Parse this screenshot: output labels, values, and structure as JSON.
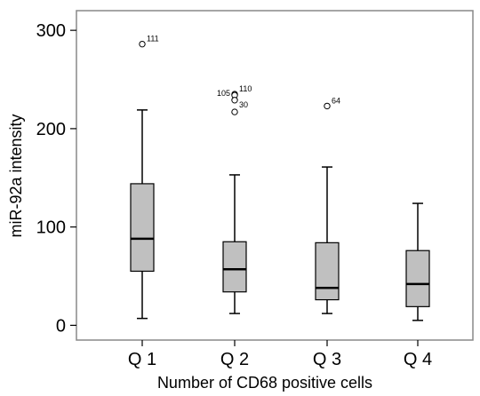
{
  "chart_data": {
    "type": "boxplot",
    "xlabel": "Number of CD68 positive cells",
    "ylabel": "miR-92a intensity",
    "ylim": [
      -15,
      320
    ],
    "yticks": [
      0,
      100,
      200,
      300
    ],
    "grid": false,
    "colors": {
      "box_fill": "#c0c0c0",
      "stroke": "#000000",
      "frame": "#888888"
    },
    "groups": [
      {
        "label": "Q 1",
        "whisker_low": 7,
        "q1": 55,
        "median": 88,
        "q3": 144,
        "whisker_high": 219,
        "outliers": [
          {
            "value": 286,
            "label": "111"
          }
        ]
      },
      {
        "label": "Q 2",
        "whisker_low": 12,
        "q1": 34,
        "median": 57,
        "q3": 85,
        "whisker_high": 153,
        "outliers": [
          {
            "value": 235,
            "label": "110"
          },
          {
            "value": 234,
            "label": "105"
          },
          {
            "value": 229,
            "label": "30"
          },
          {
            "value": 217,
            "label": ""
          }
        ]
      },
      {
        "label": "Q 3",
        "whisker_low": 12,
        "q1": 26,
        "median": 38,
        "q3": 84,
        "whisker_high": 161,
        "outliers": [
          {
            "value": 223,
            "label": "64"
          }
        ]
      },
      {
        "label": "Q 4",
        "whisker_low": 5,
        "q1": 19,
        "median": 42,
        "q3": 76,
        "whisker_high": 124,
        "outliers": []
      }
    ]
  }
}
